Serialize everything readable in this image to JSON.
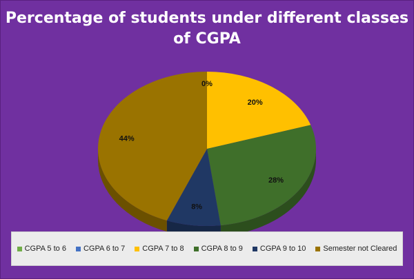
{
  "chart_data": {
    "type": "pie",
    "title_lines": [
      "Percentage of  students under different classes",
      "of CGPA"
    ],
    "categories": [
      "CGPA 5 to 6",
      "CGPA 6 to 7",
      "CGPA 7 to 8",
      "CGPA 8 to 9",
      "CGPA 9 to 10",
      "Semester not Cleared"
    ],
    "values": [
      0,
      0,
      20,
      28,
      8,
      44
    ],
    "data_labels": [
      "",
      "0%",
      "20%",
      "28%",
      "8%",
      "44%"
    ],
    "colors": [
      "#70ad47",
      "#4472c4",
      "#ffc000",
      "#3f6f2a",
      "#203864",
      "#9a7300"
    ],
    "side_colors": [
      "#4f7a30",
      "#2f508a",
      "#b38600",
      "#2c4e1d",
      "#162746",
      "#6b5000"
    ],
    "legend_position": "bottom",
    "style": "3d"
  }
}
